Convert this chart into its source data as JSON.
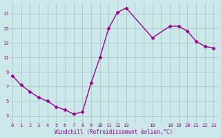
{
  "x": [
    0,
    1,
    2,
    3,
    4,
    5,
    6,
    7,
    8,
    9,
    10,
    11,
    12,
    13,
    16,
    18,
    19,
    20,
    21,
    22,
    23
  ],
  "y": [
    8.5,
    7.2,
    6.3,
    5.5,
    5.0,
    4.2,
    3.8,
    3.2,
    3.5,
    7.5,
    11.0,
    15.0,
    17.2,
    17.8,
    13.7,
    15.3,
    15.3,
    14.6,
    13.2,
    12.5,
    12.3
  ],
  "line_color": "#990099",
  "marker": "D",
  "marker_size": 2.5,
  "bg_color": "#cce8e8",
  "grid_color": "#aac8c8",
  "xlabel": "Windchill (Refroidissement éolien,°C)",
  "xlabel_color": "#990099",
  "tick_color": "#990099",
  "yticks": [
    3,
    5,
    7,
    9,
    11,
    13,
    15,
    17
  ],
  "xtick_labels": [
    "0",
    "1",
    "2",
    "3",
    "4",
    "5",
    "6",
    "7",
    "8",
    "9",
    "10",
    "11",
    "12",
    "13",
    "",
    "16",
    "",
    "18",
    "19",
    "20",
    "21",
    "22",
    "23"
  ],
  "xlim": [
    -0.3,
    23.5
  ],
  "ylim": [
    2.0,
    18.5
  ],
  "linewidth": 1.0
}
